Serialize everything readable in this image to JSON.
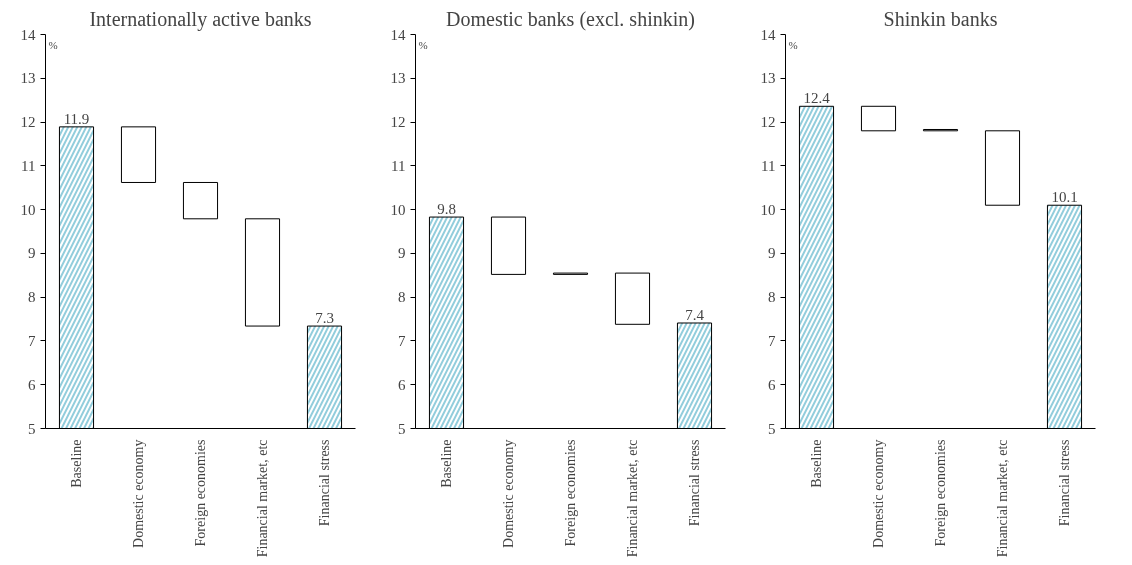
{
  "chart_data": [
    {
      "type": "bar",
      "title": "Internationally active banks",
      "ylabel": "%",
      "categories": [
        "Baseline",
        "Domestic economy",
        "Foreign economies",
        "Financial market, etc",
        "Financial stress"
      ],
      "values": [
        11.89,
        -1.27,
        -0.83,
        -2.45,
        7.34
      ],
      "base": [
        null,
        11.89,
        10.62,
        9.79,
        null
      ],
      "colors": [
        "#92cddc",
        "#ffffff",
        "#ffffff",
        "#ffffff",
        "#92cddc"
      ],
      "value_labels": [
        "11.9",
        null,
        null,
        null,
        "7.3"
      ],
      "ylim": [
        5,
        14
      ],
      "yticks": [
        5,
        6,
        7,
        8,
        9,
        10,
        11,
        12,
        13,
        14
      ],
      "grid": false
    },
    {
      "type": "bar",
      "title": "Domestic banks (excl. shinkin)",
      "ylabel": "%",
      "categories": [
        "Baseline",
        "Domestic economy",
        "Foreign economies",
        "Financial market, etc",
        "Financial stress"
      ],
      "values": [
        9.83,
        -1.31,
        0.03,
        -1.17,
        7.41
      ],
      "base": [
        null,
        9.83,
        8.52,
        8.55,
        null
      ],
      "colors": [
        "#92cddc",
        "#ffffff",
        "#ffffff",
        "#ffffff",
        "#92cddc"
      ],
      "value_labels": [
        "9.8",
        null,
        null,
        null,
        "7.4"
      ],
      "ylim": [
        5,
        14
      ],
      "yticks": [
        5,
        6,
        7,
        8,
        9,
        10,
        11,
        12,
        13,
        14
      ],
      "grid": false
    },
    {
      "type": "bar",
      "title": "Shinkin banks",
      "ylabel": "%",
      "categories": [
        "Baseline",
        "Domestic economy",
        "Foreign economies",
        "Financial market, etc",
        "Financial stress"
      ],
      "values": [
        12.36,
        -0.56,
        0.03,
        -1.7,
        10.1
      ],
      "base": [
        null,
        12.36,
        11.8,
        11.8,
        null
      ],
      "colors": [
        "#92cddc",
        "#ffffff",
        "#ffffff",
        "#ffffff",
        "#92cddc"
      ],
      "value_labels": [
        "12.4",
        null,
        null,
        null,
        "10.1"
      ],
      "ylim": [
        5,
        14
      ],
      "yticks": [
        5,
        6,
        7,
        8,
        9,
        10,
        11,
        12,
        13,
        14
      ],
      "grid": false
    }
  ]
}
